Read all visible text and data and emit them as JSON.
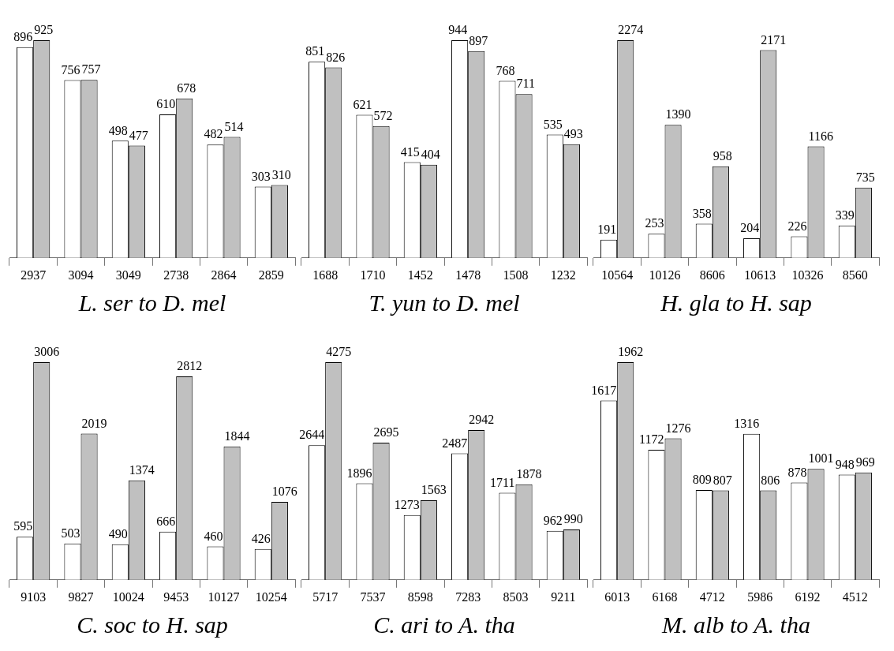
{
  "chart_data": [
    {
      "type": "bar",
      "title": "L. ser to D. mel",
      "categories": [
        "2937",
        "3094",
        "3049",
        "2738",
        "2864",
        "2859"
      ],
      "series": [
        {
          "color": "#ffffff",
          "values": [
            896,
            756,
            498,
            610,
            482,
            303
          ]
        },
        {
          "color": "#c0c0c0",
          "values": [
            925,
            757,
            477,
            678,
            514,
            310
          ]
        }
      ],
      "data_labels": true,
      "legend": false,
      "grid": false
    },
    {
      "type": "bar",
      "title": "T. yun to D. mel",
      "categories": [
        "1688",
        "1710",
        "1452",
        "1478",
        "1508",
        "1232"
      ],
      "series": [
        {
          "color": "#ffffff",
          "values": [
            851,
            621,
            415,
            944,
            768,
            535
          ]
        },
        {
          "color": "#c0c0c0",
          "values": [
            826,
            572,
            404,
            897,
            711,
            493
          ]
        }
      ],
      "data_labels": true,
      "legend": false,
      "grid": false
    },
    {
      "type": "bar",
      "title": "H. gla to H. sap",
      "categories": [
        "10564",
        "10126",
        "8606",
        "10613",
        "10326",
        "8560"
      ],
      "series": [
        {
          "color": "#ffffff",
          "values": [
            191,
            253,
            358,
            204,
            226,
            339
          ]
        },
        {
          "color": "#c0c0c0",
          "values": [
            2274,
            1390,
            958,
            2171,
            1166,
            735
          ]
        }
      ],
      "data_labels": true,
      "legend": false,
      "grid": false
    },
    {
      "type": "bar",
      "title": "C. soc to H. sap",
      "categories": [
        "9103",
        "9827",
        "10024",
        "9453",
        "10127",
        "10254"
      ],
      "series": [
        {
          "color": "#ffffff",
          "values": [
            595,
            503,
            490,
            666,
            460,
            426
          ]
        },
        {
          "color": "#c0c0c0",
          "values": [
            3006,
            2019,
            1374,
            2812,
            1844,
            1076
          ]
        }
      ],
      "data_labels": true,
      "legend": false,
      "grid": false
    },
    {
      "type": "bar",
      "title": "C. ari to A. tha",
      "categories": [
        "5717",
        "7537",
        "8598",
        "7283",
        "8503",
        "9211"
      ],
      "series": [
        {
          "color": "#ffffff",
          "values": [
            2644,
            1896,
            1273,
            2487,
            1711,
            962
          ]
        },
        {
          "color": "#c0c0c0",
          "values": [
            4275,
            2695,
            1563,
            2942,
            1878,
            990
          ]
        }
      ],
      "data_labels": true,
      "legend": false,
      "grid": false
    },
    {
      "type": "bar",
      "title": "M. alb to A. tha",
      "categories": [
        "6013",
        "6168",
        "4712",
        "5986",
        "6192",
        "4512"
      ],
      "series": [
        {
          "color": "#ffffff",
          "values": [
            1617,
            1172,
            809,
            1316,
            878,
            948
          ]
        },
        {
          "color": "#c0c0c0",
          "values": [
            1962,
            1276,
            807,
            806,
            1001,
            969
          ]
        }
      ],
      "data_labels": true,
      "legend": false,
      "grid": false
    }
  ]
}
